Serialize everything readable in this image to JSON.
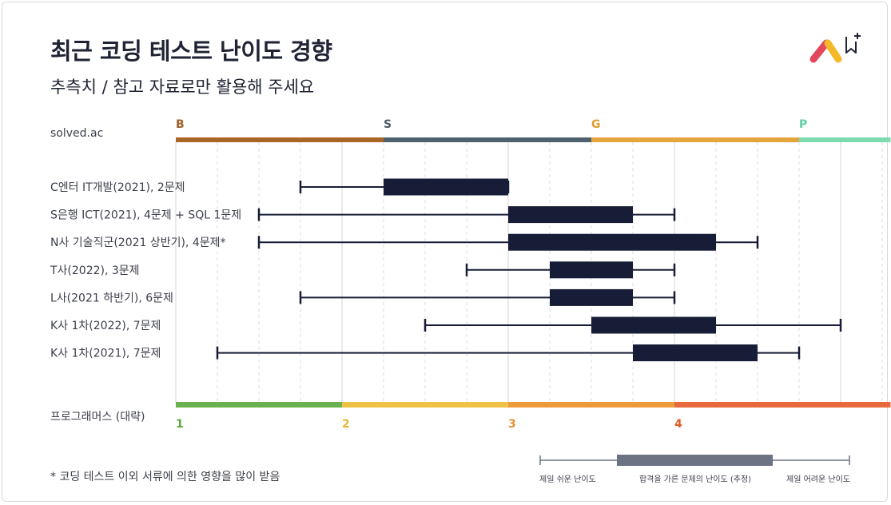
{
  "title": "최근 코딩 테스트 난이도 경향",
  "subtitle": "추측치 / 참고 자료로만 활용해 주세요",
  "footnote": "* 코딩 테스트 이외 서류에 의한 영향을 많이 받음",
  "colors": {
    "box": "#171d36",
    "whisker": "#171d36",
    "text": "#1f2333",
    "legend_box": "#6c7383",
    "legend_whisker": "#6c7383"
  },
  "chart_data": {
    "type": "boxplot",
    "value_axis": {
      "label": "프로그래머스 (대략)",
      "min": 1,
      "max": 5.3,
      "grid_step": 0.25
    },
    "solved_ac": {
      "label": "solved.ac",
      "tiers": [
        {
          "name": "B",
          "start": 1.0,
          "end": 2.25,
          "color": "#a86625",
          "text_color": "#a0622a"
        },
        {
          "name": "S",
          "start": 2.25,
          "end": 3.5,
          "color": "#4e616f",
          "text_color": "#4f5d6b"
        },
        {
          "name": "G",
          "start": 3.5,
          "end": 4.75,
          "color": "#e5a43c",
          "text_color": "#e09a2a"
        },
        {
          "name": "P",
          "start": 4.75,
          "end": 5.3,
          "color": "#7edbb0",
          "text_color": "#5ed0a0"
        }
      ]
    },
    "programmers": {
      "levels": [
        {
          "name": "1",
          "start": 1,
          "end": 2,
          "color": "#6bb04f",
          "text_color": "#5aa53e"
        },
        {
          "name": "2",
          "start": 2,
          "end": 3,
          "color": "#efc246",
          "text_color": "#e8b52d"
        },
        {
          "name": "3",
          "start": 3,
          "end": 4,
          "color": "#ed9a3b",
          "text_color": "#e8902e"
        },
        {
          "name": "4",
          "start": 4,
          "end": 5.3,
          "color": "#e7693c",
          "text_color": "#dd5b25"
        }
      ]
    },
    "series": [
      {
        "label": "C엔터 IT개발(2021), 2문제",
        "min": 1.75,
        "q1": 2.25,
        "q3": 3.0,
        "max": 3.0
      },
      {
        "label": "S은행 ICT(2021), 4문제 + SQL 1문제",
        "min": 1.5,
        "q1": 3.0,
        "q3": 3.75,
        "max": 4.0
      },
      {
        "label": "N사 기술직군(2021 상반기), 4문제*",
        "min": 1.5,
        "q1": 3.0,
        "q3": 4.25,
        "max": 4.5
      },
      {
        "label": "T사(2022), 3문제",
        "min": 2.75,
        "q1": 3.25,
        "q3": 3.75,
        "max": 4.0
      },
      {
        "label": "L사(2021 하반기), 6문제",
        "min": 1.75,
        "q1": 3.25,
        "q3": 3.75,
        "max": 4.0
      },
      {
        "label": "K사 1차(2022), 7문제",
        "min": 2.5,
        "q1": 3.5,
        "q3": 4.25,
        "max": 5.0
      },
      {
        "label": "K사 1차(2021), 7문제",
        "min": 1.25,
        "q1": 3.75,
        "q3": 4.5,
        "max": 4.75
      }
    ],
    "legend": {
      "min_label": "제일 쉬운 난이도",
      "box_label": "합격을 가른 문제의 난이도 (추정)",
      "max_label": "제일 어려운 난이도"
    }
  }
}
